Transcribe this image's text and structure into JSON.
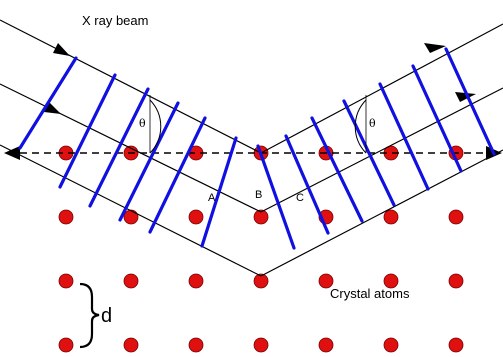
{
  "labels": {
    "beam": "X ray beam",
    "atoms": "Crystal atoms",
    "spacing": "d",
    "theta_left": "θ",
    "theta_right": "θ",
    "point_a": "A",
    "point_b": "B",
    "point_c": "C"
  },
  "colors": {
    "rays": "#000000",
    "wavefronts": "#1010e0",
    "atoms": "#e01010",
    "atom_outline": "#7a0000",
    "dashed_plane": "#000000"
  },
  "lattice": {
    "rows": 4,
    "columns": 7
  }
}
